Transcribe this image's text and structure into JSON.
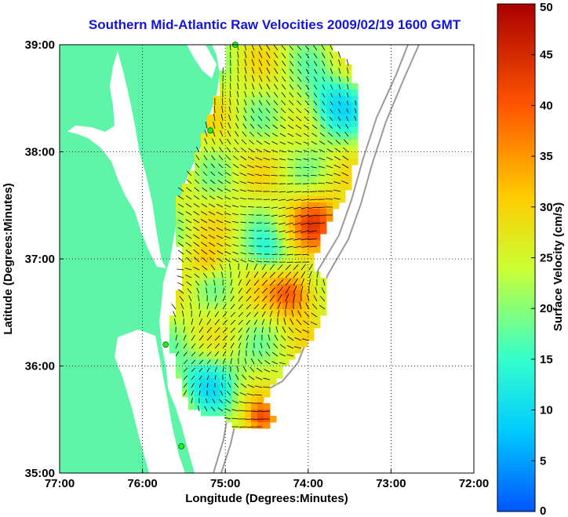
{
  "title": "Southern Mid-Atlantic Raw Velocities 2009/02/19 1600 GMT",
  "map": {
    "x_ticks": [
      "77:00",
      "76:00",
      "75:00",
      "74:00",
      "73:00",
      "72:00"
    ],
    "y_ticks": [
      "35:00",
      "36:00",
      "37:00",
      "38:00",
      "39:00"
    ],
    "x_label": "Longitude (Degrees:Minutes)",
    "y_label": "Latitude (Degrees:Minutes)",
    "lon_range": [
      -77,
      -72
    ],
    "lat_range": [
      35,
      39
    ],
    "grid": "dotted",
    "land_color": "#5ff5a8",
    "stations": [
      {
        "lon": -74.88,
        "lat": 39.0
      },
      {
        "lon": -75.18,
        "lat": 38.2
      },
      {
        "lon": -75.72,
        "lat": 36.2
      },
      {
        "lon": -75.53,
        "lat": 35.25
      }
    ]
  },
  "colorbar": {
    "label": "Surface Velocity (cm/s)",
    "ticks": [
      "0",
      "5",
      "10",
      "15",
      "20",
      "25",
      "30",
      "35",
      "40",
      "45",
      "50"
    ],
    "min": 0,
    "max": 50,
    "colors": [
      "#0055ff",
      "#00ccff",
      "#33ffcc",
      "#ccff33",
      "#ffcc00",
      "#ff5500",
      "#aa0000"
    ]
  }
}
